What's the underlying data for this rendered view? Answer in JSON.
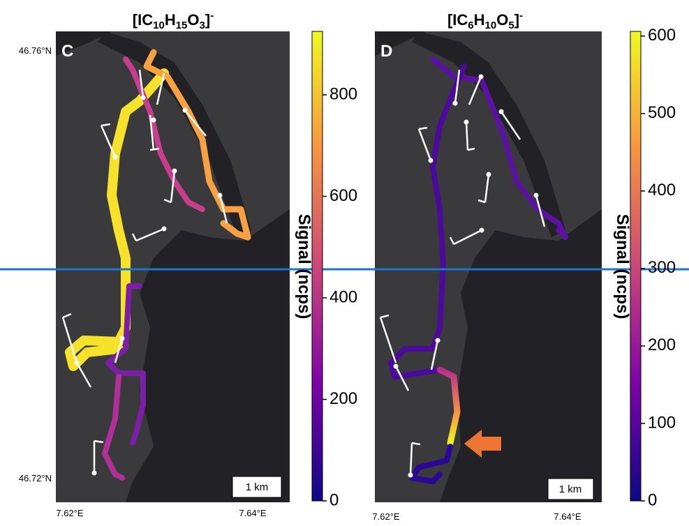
{
  "panels": [
    {
      "label": "C",
      "title": [
        {
          "text": "[IC"
        },
        {
          "sub": "10"
        },
        {
          "text": "H"
        },
        {
          "sub": "15"
        },
        {
          "text": "O"
        },
        {
          "sub": "3"
        },
        {
          "text": "]"
        },
        {
          "sup": "-"
        }
      ],
      "lat_labels": [
        "46.76°N",
        "46.72°N"
      ],
      "lon_labels": [
        "7.62°E",
        "7.64°E"
      ],
      "scale_bar": "1 km",
      "colorbar": {
        "label": "Signal (ncps)",
        "lim": [
          0,
          925
        ],
        "ticks": [
          0,
          200,
          400,
          600,
          800
        ]
      }
    },
    {
      "label": "D",
      "title": [
        {
          "text": "[IC"
        },
        {
          "sub": "6"
        },
        {
          "text": "H"
        },
        {
          "sub": "10"
        },
        {
          "text": "O"
        },
        {
          "sub": "5"
        },
        {
          "text": "]"
        },
        {
          "sup": "-"
        }
      ],
      "lon_labels": [
        "7.62°E",
        "7.64°E"
      ],
      "scale_bar": "1 km",
      "colorbar": {
        "label": "Signal (ncps)",
        "lim": [
          0,
          606
        ],
        "ticks": [
          0,
          100,
          200,
          300,
          400,
          500,
          600
        ]
      }
    }
  ]
}
